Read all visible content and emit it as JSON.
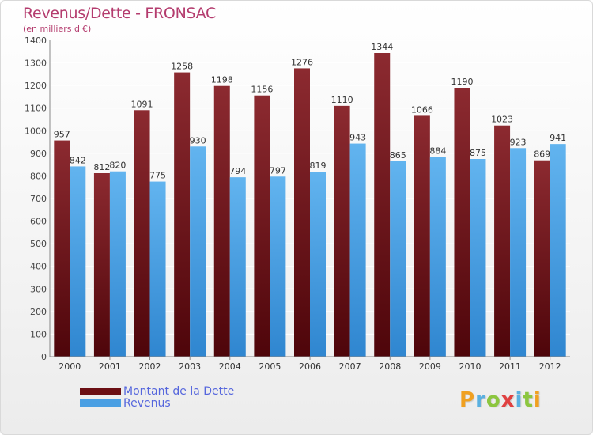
{
  "title": "Revenus/Dette - FRONSAC",
  "subtitle": "(en milliers d'€)",
  "colors": {
    "dette": "#6b0f14",
    "revenus": "#4a9fe3",
    "title": "#b43c6e",
    "legend_text": "#5566dd"
  },
  "legend": [
    {
      "label": "Montant de la Dette",
      "color": "#6b0f14"
    },
    {
      "label": "Revenus",
      "color": "#4a9fe3"
    }
  ],
  "logo": {
    "letters": [
      "P",
      "r",
      "o",
      "x",
      "i",
      "t",
      "i"
    ],
    "colors": [
      "#f0a020",
      "#5ab0e0",
      "#8cc63f",
      "#e04040",
      "#5ab0e0",
      "#8cc63f",
      "#f0a020"
    ]
  },
  "chart_data": {
    "type": "bar",
    "categories": [
      "2000",
      "2001",
      "2002",
      "2003",
      "2004",
      "2005",
      "2006",
      "2007",
      "2008",
      "2009",
      "2010",
      "2011",
      "2012"
    ],
    "series": [
      {
        "name": "Montant de la Dette",
        "values": [
          957,
          812,
          1091,
          1258,
          1198,
          1156,
          1276,
          1110,
          1344,
          1066,
          1190,
          1023,
          869
        ]
      },
      {
        "name": "Revenus",
        "values": [
          842,
          820,
          775,
          930,
          794,
          797,
          819,
          943,
          865,
          884,
          875,
          923,
          941
        ]
      }
    ],
    "ylim": [
      0,
      1400
    ],
    "yticks": [
      0,
      100,
      200,
      300,
      400,
      500,
      600,
      700,
      800,
      900,
      1000,
      1100,
      1200,
      1300,
      1400
    ],
    "grid": true,
    "legend_position": "bottom-left"
  }
}
